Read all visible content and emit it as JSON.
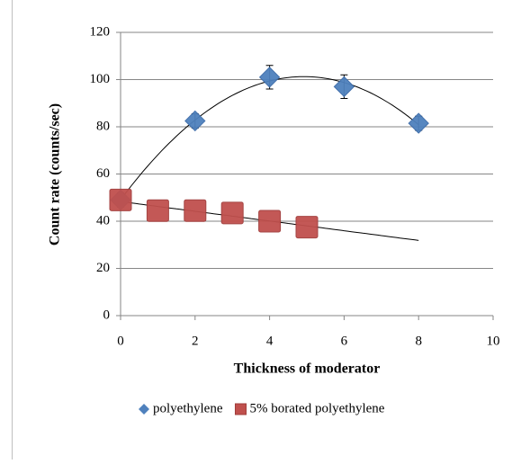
{
  "chart_data": {
    "type": "scatter",
    "xlabel": "Thickness of moderator",
    "ylabel": "Count rate (counts/sec)",
    "xlim": [
      0,
      10
    ],
    "xticks": [
      0,
      2,
      4,
      6,
      8,
      10
    ],
    "ylim": [
      0,
      120
    ],
    "yticks": [
      0,
      20,
      40,
      60,
      80,
      100,
      120
    ],
    "grid": true,
    "legend": "bottom",
    "series": [
      {
        "name": "polyethylene",
        "color": "#4f81bd",
        "marker": "diamond",
        "trendline": "polynomial",
        "x": [
          0,
          2,
          4,
          6,
          8
        ],
        "values": [
          49,
          82.5,
          101,
          97,
          81.5
        ],
        "errors": [
          3,
          3,
          5,
          5,
          3
        ]
      },
      {
        "name": "5% borated polyethylene",
        "color": "#c0504d",
        "marker": "square",
        "trendline": "linear",
        "x": [
          0,
          1,
          2,
          3,
          4,
          5
        ],
        "values": [
          49,
          44.5,
          44.5,
          43.5,
          40,
          37.5
        ]
      }
    ]
  }
}
